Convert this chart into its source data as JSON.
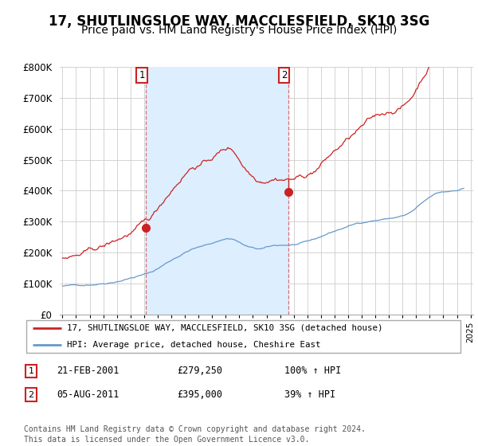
{
  "title": "17, SHUTLINGSLOE WAY, MACCLESFIELD, SK10 3SG",
  "subtitle": "Price paid vs. HM Land Registry's House Price Index (HPI)",
  "legend_line1": "17, SHUTLINGSLOE WAY, MACCLESFIELD, SK10 3SG (detached house)",
  "legend_line2": "HPI: Average price, detached house, Cheshire East",
  "footnote": "Contains HM Land Registry data © Crown copyright and database right 2024.\nThis data is licensed under the Open Government Licence v3.0.",
  "transactions": [
    {
      "label": "1",
      "date": "21-FEB-2001",
      "price": 279250,
      "price_str": "£279,250",
      "pct": "100%",
      "dir": "↑",
      "x": 2001.13
    },
    {
      "label": "2",
      "date": "05-AUG-2011",
      "price": 395000,
      "price_str": "£395,000",
      "pct": "39%",
      "dir": "↑",
      "x": 2011.6
    }
  ],
  "vline_color": "#e06060",
  "shade_color": "#ddeeff",
  "red_line_color": "#cc2222",
  "blue_line_color": "#6699cc",
  "ylim": [
    0,
    800000
  ],
  "yticks": [
    0,
    100000,
    200000,
    300000,
    400000,
    500000,
    600000,
    700000,
    800000
  ],
  "xlim": [
    1994.8,
    2025.2
  ],
  "background_color": "#ffffff",
  "plot_bg_color": "#ffffff",
  "grid_color": "#cccccc",
  "title_fontsize": 12,
  "subtitle_fontsize": 10
}
